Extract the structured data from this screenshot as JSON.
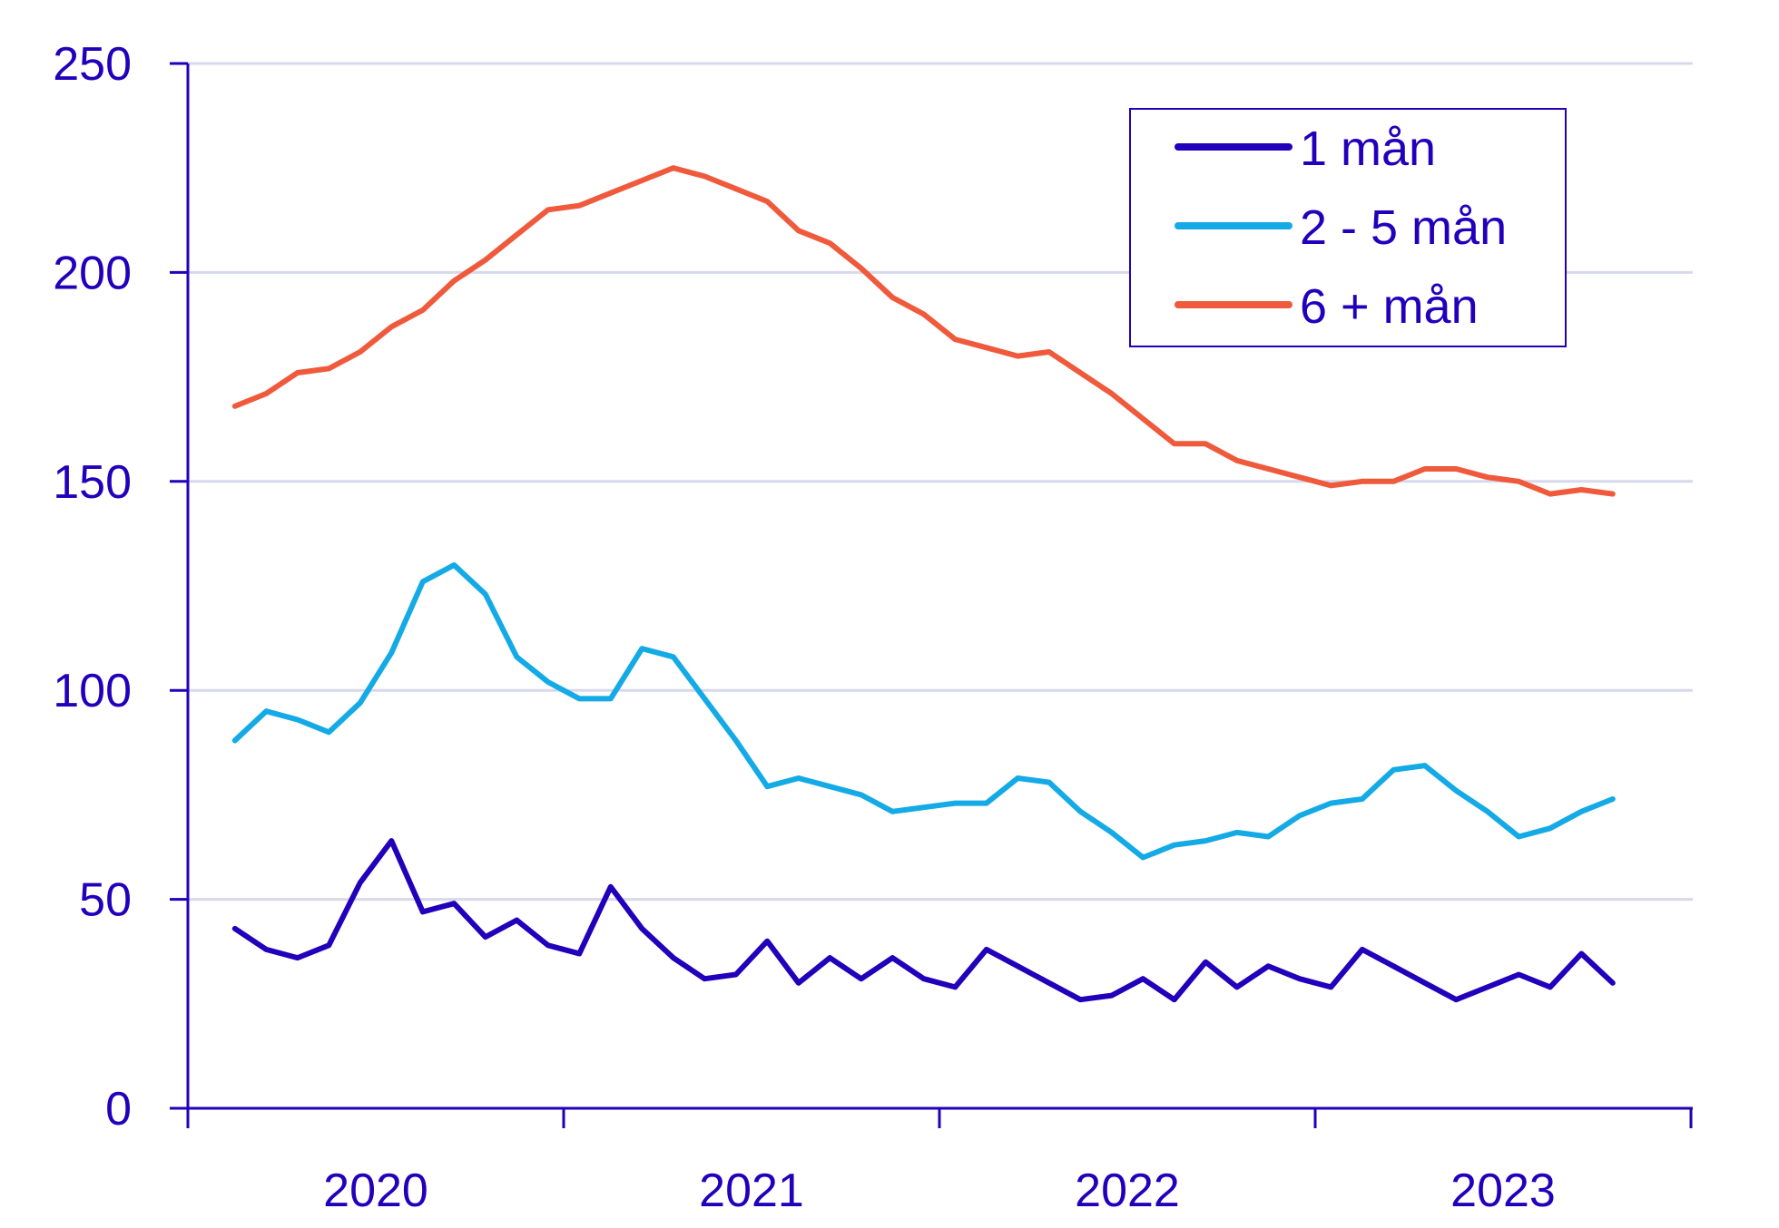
{
  "chart_data": {
    "type": "line",
    "title": "",
    "xlabel": "",
    "ylabel": "",
    "ylim": [
      0,
      250
    ],
    "yticks": [
      0,
      50,
      100,
      150,
      200,
      250
    ],
    "year_labels": [
      "2020",
      "2021",
      "2022",
      "2023"
    ],
    "grid": "horizontal",
    "legend_position": "top-right",
    "colors": {
      "axis": "#2200bb",
      "grid": "#d8d8ec",
      "text": "#2200bb"
    },
    "series": [
      {
        "name": "1 mån",
        "color": "#2200bb",
        "values": [
          43,
          38,
          36,
          39,
          54,
          64,
          47,
          49,
          41,
          45,
          39,
          37,
          53,
          43,
          36,
          31,
          32,
          40,
          30,
          36,
          31,
          36,
          31,
          29,
          38,
          34,
          30,
          26,
          27,
          31,
          26,
          35,
          29,
          34,
          31,
          29,
          38,
          34,
          30,
          26,
          29,
          32,
          29,
          37,
          30
        ]
      },
      {
        "name": "2 - 5 mån",
        "color": "#14aae6",
        "values": [
          88,
          95,
          93,
          90,
          97,
          109,
          126,
          130,
          123,
          108,
          102,
          98,
          98,
          110,
          108,
          98,
          88,
          77,
          79,
          77,
          75,
          71,
          72,
          73,
          73,
          79,
          78,
          71,
          66,
          60,
          63,
          64,
          66,
          65,
          70,
          73,
          74,
          81,
          82,
          76,
          71,
          65,
          67,
          71,
          74
        ]
      },
      {
        "name": "6 + mån",
        "color": "#f05a3c",
        "values": [
          168,
          171,
          176,
          177,
          181,
          187,
          191,
          198,
          203,
          209,
          215,
          216,
          219,
          222,
          225,
          223,
          220,
          217,
          210,
          207,
          201,
          194,
          190,
          184,
          182,
          180,
          181,
          176,
          171,
          165,
          159,
          159,
          155,
          153,
          151,
          149,
          150,
          150,
          153,
          153,
          151,
          150,
          147,
          148,
          147
        ]
      }
    ]
  }
}
